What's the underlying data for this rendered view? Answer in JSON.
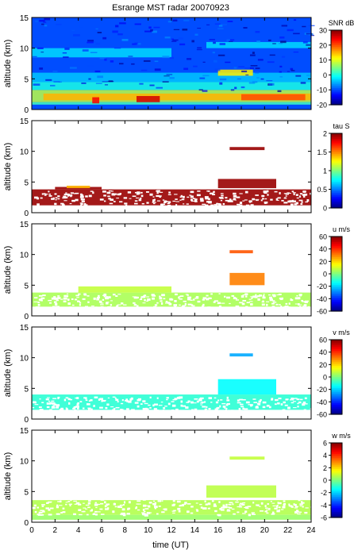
{
  "title": "Esrange MST radar 20070923",
  "xlabel": "time (UT)",
  "chart_data": [
    {
      "type": "heatmap",
      "ylabel": "altitude (km)",
      "colorbar_label": "SNR dB",
      "x_range": [
        0,
        24
      ],
      "y_range": [
        0,
        15
      ],
      "colorbar_range": [
        -20,
        30
      ],
      "colorbar_ticks": [
        "30",
        "20",
        "10",
        "0",
        "-10",
        "-20"
      ],
      "yticks": [
        "0",
        "5",
        "10",
        "15"
      ],
      "xticks": [],
      "features": [
        {
          "t0": 0,
          "t1": 24,
          "h0": 0,
          "h1": 15,
          "value": -10
        },
        {
          "t0": 0,
          "t1": 24,
          "h0": 0.8,
          "h1": 1.2,
          "value": 2
        },
        {
          "t0": 0,
          "t1": 24,
          "h0": 1.2,
          "h1": 3.2,
          "value": 8
        },
        {
          "t0": 0,
          "t1": 24,
          "h0": 3.2,
          "h1": 4.5,
          "value": 0
        },
        {
          "t0": 0,
          "t1": 24,
          "h0": 4.5,
          "h1": 6.0,
          "value": -4
        },
        {
          "t0": 0,
          "t1": 12,
          "h0": 8.5,
          "h1": 10.0,
          "value": -3
        },
        {
          "t0": 15,
          "t1": 24,
          "h0": 10.0,
          "h1": 11.0,
          "value": -3
        },
        {
          "t0": 16,
          "t1": 19,
          "h0": 5.5,
          "h1": 6.5,
          "value": 12
        },
        {
          "t0": 1,
          "t1": 24,
          "h0": 1.5,
          "h1": 2.6,
          "value": 15
        },
        {
          "t0": 9,
          "t1": 11,
          "h0": 1.2,
          "h1": 2.2,
          "value": 26
        },
        {
          "t0": 5.2,
          "t1": 5.8,
          "h0": 1.0,
          "h1": 2.0,
          "value": 24
        },
        {
          "t0": 18,
          "t1": 23.5,
          "h0": 1.5,
          "h1": 2.5,
          "value": 20
        }
      ]
    },
    {
      "type": "heatmap",
      "ylabel": "altitude (km)",
      "colorbar_label": "tau S",
      "x_range": [
        0,
        24
      ],
      "y_range": [
        0,
        15
      ],
      "colorbar_range": [
        0,
        2
      ],
      "colorbar_ticks": [
        "2",
        "1.5",
        "1",
        "0.5",
        "0"
      ],
      "yticks": [
        "0",
        "5",
        "10",
        "15"
      ],
      "xticks": [],
      "features": [
        {
          "t0": 0,
          "t1": 24,
          "h0": 1.2,
          "h1": 3.8,
          "value": 1.95
        },
        {
          "t0": 2,
          "t1": 6,
          "h0": 3.8,
          "h1": 4.2,
          "value": 1.95
        },
        {
          "t0": 17,
          "t1": 20,
          "h0": 10.2,
          "h1": 10.7,
          "value": 1.95
        },
        {
          "t0": 16,
          "t1": 21,
          "h0": 4.0,
          "h1": 5.5,
          "value": 1.95
        },
        {
          "t0": 3,
          "t1": 5,
          "h0": 4.0,
          "h1": 4.4,
          "value": 1.4
        }
      ]
    },
    {
      "type": "heatmap",
      "ylabel": "altitude (km)",
      "colorbar_label": "u m/s",
      "x_range": [
        0,
        24
      ],
      "y_range": [
        0,
        15
      ],
      "colorbar_range": [
        -60,
        60
      ],
      "colorbar_ticks": [
        "60",
        "40",
        "20",
        "0",
        "-20",
        "-40",
        "-60"
      ],
      "yticks": [
        "0",
        "5",
        "10",
        "15"
      ],
      "xticks": [],
      "features": [
        {
          "t0": 0,
          "t1": 24,
          "h0": 1.5,
          "h1": 3.8,
          "value": 5
        },
        {
          "t0": 4,
          "t1": 12,
          "h0": 3.8,
          "h1": 4.8,
          "value": 8
        },
        {
          "t0": 17,
          "t1": 20,
          "h0": 5.0,
          "h1": 7.0,
          "value": 30
        },
        {
          "t0": 17,
          "t1": 19,
          "h0": 10.2,
          "h1": 10.7,
          "value": 35
        }
      ]
    },
    {
      "type": "heatmap",
      "ylabel": "altitude (km)",
      "colorbar_label": "v m/s",
      "x_range": [
        0,
        24
      ],
      "y_range": [
        0,
        15
      ],
      "colorbar_range": [
        -60,
        60
      ],
      "colorbar_ticks": [
        "60",
        "40",
        "20",
        "0",
        "-20",
        "-40",
        "-60"
      ],
      "yticks": [
        "0",
        "5",
        "10",
        "15"
      ],
      "xticks": [],
      "features": [
        {
          "t0": 0,
          "t1": 24,
          "h0": 1.5,
          "h1": 4.0,
          "value": -10
        },
        {
          "t0": 16,
          "t1": 21,
          "h0": 4.0,
          "h1": 6.5,
          "value": -15
        },
        {
          "t0": 17,
          "t1": 19,
          "h0": 10.2,
          "h1": 10.7,
          "value": -25
        }
      ]
    },
    {
      "type": "heatmap",
      "ylabel": "altitude (km)",
      "colorbar_label": "w m/s",
      "x_range": [
        0,
        24
      ],
      "y_range": [
        0,
        15
      ],
      "colorbar_range": [
        -6,
        6
      ],
      "colorbar_ticks": [
        "6",
        "4",
        "2",
        "0",
        "-2",
        "-4",
        "-6"
      ],
      "yticks": [
        "0",
        "5",
        "10",
        "15"
      ],
      "xticks": [
        "0",
        "2",
        "4",
        "6",
        "8",
        "10",
        "12",
        "14",
        "16",
        "18",
        "20",
        "22",
        "24"
      ],
      "features": [
        {
          "t0": 0,
          "t1": 24,
          "h0": 1.2,
          "h1": 3.6,
          "value": 0.6
        },
        {
          "t0": 0,
          "t1": 24,
          "h0": 0.4,
          "h1": 1.2,
          "value": 0.3
        },
        {
          "t0": 17,
          "t1": 20,
          "h0": 10.2,
          "h1": 10.7,
          "value": 0.8
        },
        {
          "t0": 15,
          "t1": 21,
          "h0": 4.0,
          "h1": 6.0,
          "value": 0.7
        }
      ]
    }
  ]
}
